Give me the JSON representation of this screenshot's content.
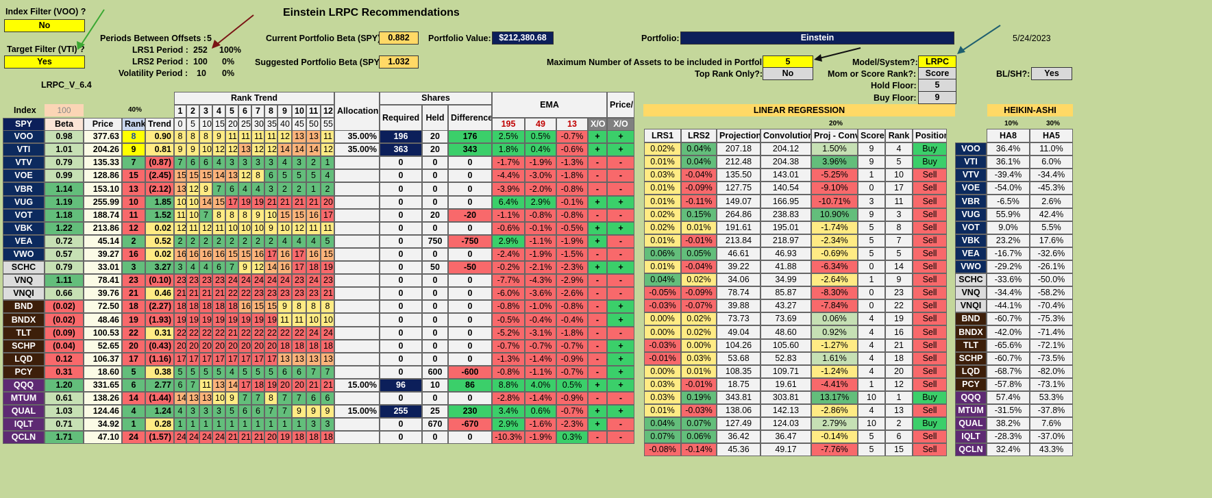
{
  "title": "Einstein LRPC Recommendations",
  "top": {
    "index_filter_label": "Index Filter (VOO) ?",
    "index_filter_value": "No",
    "target_filter_label": "Target Filter (VTI) ?",
    "target_filter_value": "Yes",
    "version": "LRPC_V_6.4",
    "periods_label": "Periods Between Offsets :",
    "periods_value": "5",
    "lrs1_label": "LRS1 Period :",
    "lrs1_value": "252",
    "lrs1_pct": "100%",
    "lrs2_label": "LRS2 Period :",
    "lrs2_value": "100",
    "lrs2_pct": "0%",
    "vol_label": "Volatility Period :",
    "vol_value": "10",
    "vol_pct": "0%",
    "cur_beta_label": "Current Portfolio Beta (SPY):",
    "cur_beta": "0.882",
    "sug_beta_label": "Suggested Portfolio Beta (SPY):",
    "sug_beta": "1.032",
    "pv_label": "Portfolio Value:",
    "pv": "$212,380.68",
    "portfolio_label": "Portfolio:",
    "portfolio": "Einstein",
    "date": "5/24/2023",
    "max_assets_label": "Maximum Number of Assets to be included in Portfolio:",
    "max_assets": "5",
    "top_rank_label": "Top Rank Only?:",
    "top_rank": "No",
    "model_label": "Model/System?:",
    "model": "LRPC",
    "mom_label": "Mom or Score Rank?:",
    "mom": "Score",
    "hold_label": "Hold Floor:",
    "hold": "5",
    "buy_label": "Buy Floor:",
    "buy": "9",
    "blsh_label": "BL/SH?:",
    "blsh": "Yes"
  },
  "left_headers": {
    "index": "Index",
    "index_val": "100",
    "pct40": "40%",
    "spy": "SPY",
    "beta": "Beta",
    "price": "Price",
    "rank": "Rank",
    "trend": "Trend"
  },
  "rank_trend": {
    "title": "Rank Trend",
    "nums": [
      "1",
      "2",
      "3",
      "4",
      "5",
      "6",
      "7",
      "8",
      "9",
      "10",
      "11",
      "12"
    ],
    "offsets": [
      "0",
      "5",
      "10",
      "15",
      "20",
      "25",
      "30",
      "35",
      "40",
      "45",
      "50",
      "55"
    ]
  },
  "mid_headers": {
    "alloc": "Allocations",
    "shares": "Shares",
    "required": "Required",
    "held": "Held",
    "diff": "Difference",
    "ema": "EMA",
    "ema1": "195",
    "ema2": "49",
    "ema3": "13",
    "xo": "X/O",
    "psma": "Price/ SMA",
    "xo2": "X/O"
  },
  "lr_headers": {
    "title": "LINEAR REGRESSION",
    "pct": "20%",
    "lrs1": "LRS1",
    "lrs2": "LRS2",
    "proj": "Projection",
    "conv": "Convolution",
    "pc": "Proj - Conv",
    "score": "Score",
    "rank": "Rank",
    "pos": "Position"
  },
  "ha_headers": {
    "title": "HEIKIN-ASHI",
    "p1": "10%",
    "p2": "30%",
    "ha8": "HA8",
    "ha5": "HA5"
  },
  "rows": [
    {
      "t": "VOO",
      "beta": "0.98",
      "price": "377.63",
      "rank": "8",
      "trend": "0.90",
      "rt": [
        "8",
        "8",
        "8",
        "9",
        "11",
        "11",
        "11",
        "11",
        "12",
        "13",
        "13",
        "11"
      ],
      "alloc": "35.00%",
      "req": "196",
      "held": "20",
      "diff": "176",
      "e1": "2.5%",
      "e2": "0.5%",
      "e3": "-0.7%",
      "xo": "+",
      "ps": "+",
      "l1": "0.02%",
      "l2": "0.04%",
      "proj": "207.18",
      "conv": "204.12",
      "pc": "1.50%",
      "score": "9",
      "rk": "4",
      "pos": "Buy",
      "ha8": "36.4%",
      "ha5": "11.0%"
    },
    {
      "t": "VTI",
      "beta": "1.01",
      "price": "204.26",
      "rank": "9",
      "trend": "0.81",
      "rt": [
        "9",
        "9",
        "10",
        "12",
        "12",
        "13",
        "12",
        "12",
        "14",
        "14",
        "14",
        "12"
      ],
      "alloc": "35.00%",
      "req": "363",
      "held": "20",
      "diff": "343",
      "e1": "1.8%",
      "e2": "0.4%",
      "e3": "-0.6%",
      "xo": "+",
      "ps": "+",
      "l1": "0.01%",
      "l2": "0.04%",
      "proj": "212.48",
      "conv": "204.38",
      "pc": "3.96%",
      "score": "9",
      "rk": "5",
      "pos": "Buy",
      "ha8": "36.1%",
      "ha5": "6.0%"
    },
    {
      "t": "VTV",
      "beta": "0.79",
      "price": "135.33",
      "rank": "7",
      "trend": "(0.87)",
      "rt": [
        "7",
        "6",
        "6",
        "4",
        "3",
        "3",
        "3",
        "3",
        "4",
        "3",
        "2",
        "1"
      ],
      "alloc": "",
      "req": "0",
      "held": "0",
      "diff": "0",
      "e1": "-1.7%",
      "e2": "-1.9%",
      "e3": "-1.3%",
      "xo": "-",
      "ps": "-",
      "l1": "0.03%",
      "l2": "-0.04%",
      "proj": "135.50",
      "conv": "143.01",
      "pc": "-5.25%",
      "score": "1",
      "rk": "10",
      "pos": "Sell",
      "ha8": "-39.4%",
      "ha5": "-34.4%"
    },
    {
      "t": "VOE",
      "beta": "0.99",
      "price": "128.86",
      "rank": "15",
      "trend": "(2.45)",
      "rt": [
        "15",
        "15",
        "15",
        "14",
        "13",
        "12",
        "8",
        "6",
        "5",
        "5",
        "5",
        "4"
      ],
      "alloc": "",
      "req": "0",
      "held": "0",
      "diff": "0",
      "e1": "-4.4%",
      "e2": "-3.0%",
      "e3": "-1.8%",
      "xo": "-",
      "ps": "-",
      "l1": "0.01%",
      "l2": "-0.09%",
      "proj": "127.75",
      "conv": "140.54",
      "pc": "-9.10%",
      "score": "0",
      "rk": "17",
      "pos": "Sell",
      "ha8": "-54.0%",
      "ha5": "-45.3%"
    },
    {
      "t": "VBR",
      "beta": "1.14",
      "price": "153.10",
      "rank": "13",
      "trend": "(2.12)",
      "rt": [
        "13",
        "12",
        "9",
        "7",
        "6",
        "4",
        "4",
        "3",
        "2",
        "2",
        "1",
        "2"
      ],
      "alloc": "",
      "req": "0",
      "held": "0",
      "diff": "0",
      "e1": "-3.9%",
      "e2": "-2.0%",
      "e3": "-0.8%",
      "xo": "-",
      "ps": "-",
      "l1": "0.01%",
      "l2": "-0.11%",
      "proj": "149.07",
      "conv": "166.95",
      "pc": "-10.71%",
      "score": "3",
      "rk": "11",
      "pos": "Sell",
      "ha8": "-6.5%",
      "ha5": "2.6%"
    },
    {
      "t": "VUG",
      "beta": "1.19",
      "price": "255.99",
      "rank": "10",
      "trend": "1.85",
      "rt": [
        "10",
        "10",
        "14",
        "15",
        "17",
        "19",
        "19",
        "21",
        "21",
        "21",
        "21",
        "20"
      ],
      "alloc": "",
      "req": "0",
      "held": "0",
      "diff": "0",
      "e1": "6.4%",
      "e2": "2.9%",
      "e3": "-0.1%",
      "xo": "+",
      "ps": "+",
      "l1": "0.02%",
      "l2": "0.15%",
      "proj": "264.86",
      "conv": "238.83",
      "pc": "10.90%",
      "score": "9",
      "rk": "3",
      "pos": "Sell",
      "ha8": "55.9%",
      "ha5": "42.4%"
    },
    {
      "t": "VOT",
      "beta": "1.18",
      "price": "188.74",
      "rank": "11",
      "trend": "1.52",
      "rt": [
        "11",
        "10",
        "7",
        "8",
        "8",
        "8",
        "9",
        "10",
        "15",
        "15",
        "16",
        "17"
      ],
      "alloc": "",
      "req": "0",
      "held": "20",
      "diff": "-20",
      "e1": "-1.1%",
      "e2": "-0.8%",
      "e3": "-0.8%",
      "xo": "-",
      "ps": "-",
      "l1": "0.02%",
      "l2": "0.01%",
      "proj": "191.61",
      "conv": "195.01",
      "pc": "-1.74%",
      "score": "5",
      "rk": "8",
      "pos": "Sell",
      "ha8": "9.0%",
      "ha5": "5.5%"
    },
    {
      "t": "VBK",
      "beta": "1.22",
      "price": "213.86",
      "rank": "12",
      "trend": "0.02",
      "rt": [
        "12",
        "11",
        "12",
        "11",
        "10",
        "10",
        "10",
        "9",
        "10",
        "12",
        "11",
        "11"
      ],
      "alloc": "",
      "req": "0",
      "held": "0",
      "diff": "0",
      "e1": "-0.6%",
      "e2": "-0.1%",
      "e3": "-0.5%",
      "xo": "+",
      "ps": "+",
      "l1": "0.01%",
      "l2": "-0.01%",
      "proj": "213.84",
      "conv": "218.97",
      "pc": "-2.34%",
      "score": "5",
      "rk": "7",
      "pos": "Sell",
      "ha8": "23.2%",
      "ha5": "17.6%"
    },
    {
      "t": "VEA",
      "beta": "0.72",
      "price": "45.14",
      "rank": "2",
      "trend": "0.52",
      "rt": [
        "2",
        "2",
        "2",
        "2",
        "2",
        "2",
        "2",
        "2",
        "4",
        "4",
        "4",
        "5"
      ],
      "alloc": "",
      "req": "0",
      "held": "750",
      "diff": "-750",
      "e1": "2.9%",
      "e2": "-1.1%",
      "e3": "-1.9%",
      "xo": "+",
      "ps": "-",
      "l1": "0.06%",
      "l2": "0.05%",
      "proj": "46.61",
      "conv": "46.93",
      "pc": "-0.69%",
      "score": "5",
      "rk": "5",
      "pos": "Sell",
      "ha8": "-16.7%",
      "ha5": "-32.6%"
    },
    {
      "t": "VWO",
      "beta": "0.57",
      "price": "39.27",
      "rank": "16",
      "trend": "0.02",
      "rt": [
        "16",
        "16",
        "16",
        "16",
        "15",
        "15",
        "16",
        "17",
        "16",
        "17",
        "16",
        "15"
      ],
      "alloc": "",
      "req": "0",
      "held": "0",
      "diff": "0",
      "e1": "-2.4%",
      "e2": "-1.9%",
      "e3": "-1.5%",
      "xo": "-",
      "ps": "-",
      "l1": "0.01%",
      "l2": "-0.04%",
      "proj": "39.22",
      "conv": "41.88",
      "pc": "-6.34%",
      "score": "0",
      "rk": "14",
      "pos": "Sell",
      "ha8": "-29.2%",
      "ha5": "-26.1%"
    },
    {
      "t": "SCHC",
      "beta": "0.79",
      "price": "33.01",
      "rank": "3",
      "trend": "3.27",
      "rt": [
        "3",
        "4",
        "4",
        "6",
        "7",
        "9",
        "12",
        "14",
        "16",
        "17",
        "18",
        "19"
      ],
      "alloc": "",
      "req": "0",
      "held": "50",
      "diff": "-50",
      "e1": "-0.2%",
      "e2": "-2.1%",
      "e3": "-2.3%",
      "xo": "+",
      "ps": "+",
      "l1": "0.04%",
      "l2": "0.02%",
      "proj": "34.06",
      "conv": "34.99",
      "pc": "-2.64%",
      "score": "1",
      "rk": "9",
      "pos": "Sell",
      "ha8": "-33.6%",
      "ha5": "-50.0%"
    },
    {
      "t": "VNQ",
      "beta": "1.11",
      "price": "78.41",
      "rank": "23",
      "trend": "(0.10)",
      "rt": [
        "23",
        "23",
        "23",
        "23",
        "24",
        "24",
        "24",
        "24",
        "24",
        "23",
        "24",
        "23"
      ],
      "alloc": "",
      "req": "0",
      "held": "0",
      "diff": "0",
      "e1": "-7.7%",
      "e2": "-4.3%",
      "e3": "-2.9%",
      "xo": "-",
      "ps": "-",
      "l1": "-0.05%",
      "l2": "-0.09%",
      "proj": "78.74",
      "conv": "85.87",
      "pc": "-8.30%",
      "score": "0",
      "rk": "23",
      "pos": "Sell",
      "ha8": "-34.4%",
      "ha5": "-58.2%"
    },
    {
      "t": "VNQI",
      "beta": "0.66",
      "price": "39.76",
      "rank": "21",
      "trend": "0.46",
      "rt": [
        "21",
        "21",
        "21",
        "21",
        "22",
        "22",
        "23",
        "23",
        "23",
        "23",
        "23",
        "21"
      ],
      "alloc": "",
      "req": "0",
      "held": "0",
      "diff": "0",
      "e1": "-6.0%",
      "e2": "-3.6%",
      "e3": "-2.6%",
      "xo": "-",
      "ps": "-",
      "l1": "-0.03%",
      "l2": "-0.07%",
      "proj": "39.88",
      "conv": "43.27",
      "pc": "-7.84%",
      "score": "0",
      "rk": "22",
      "pos": "Sell",
      "ha8": "-44.1%",
      "ha5": "-70.4%"
    },
    {
      "t": "BND",
      "beta": "(0.02)",
      "price": "72.50",
      "rank": "18",
      "trend": "(2.27)",
      "rt": [
        "18",
        "18",
        "18",
        "18",
        "18",
        "16",
        "15",
        "15",
        "9",
        "8",
        "8",
        "8"
      ],
      "alloc": "",
      "req": "0",
      "held": "0",
      "diff": "0",
      "e1": "-0.8%",
      "e2": "-1.0%",
      "e3": "-0.8%",
      "xo": "-",
      "ps": "+",
      "l1": "0.00%",
      "l2": "0.02%",
      "proj": "73.73",
      "conv": "73.69",
      "pc": "0.06%",
      "score": "4",
      "rk": "19",
      "pos": "Sell",
      "ha8": "-60.7%",
      "ha5": "-75.3%"
    },
    {
      "t": "BNDX",
      "beta": "(0.02)",
      "price": "48.46",
      "rank": "19",
      "trend": "(1.93)",
      "rt": [
        "19",
        "19",
        "19",
        "19",
        "19",
        "19",
        "19",
        "19",
        "11",
        "11",
        "10",
        "10"
      ],
      "alloc": "",
      "req": "0",
      "held": "0",
      "diff": "0",
      "e1": "-0.5%",
      "e2": "-0.4%",
      "e3": "-0.4%",
      "xo": "-",
      "ps": "+",
      "l1": "0.00%",
      "l2": "0.02%",
      "proj": "49.04",
      "conv": "48.60",
      "pc": "0.92%",
      "score": "4",
      "rk": "16",
      "pos": "Sell",
      "ha8": "-42.0%",
      "ha5": "-71.4%"
    },
    {
      "t": "TLT",
      "beta": "(0.09)",
      "price": "100.53",
      "rank": "22",
      "trend": "0.31",
      "rt": [
        "22",
        "22",
        "22",
        "22",
        "21",
        "22",
        "22",
        "22",
        "22",
        "22",
        "24",
        "24"
      ],
      "alloc": "",
      "req": "0",
      "held": "0",
      "diff": "0",
      "e1": "-5.2%",
      "e2": "-3.1%",
      "e3": "-1.8%",
      "xo": "-",
      "ps": "-",
      "l1": "-0.03%",
      "l2": "0.00%",
      "proj": "104.26",
      "conv": "105.60",
      "pc": "-1.27%",
      "score": "4",
      "rk": "21",
      "pos": "Sell",
      "ha8": "-65.6%",
      "ha5": "-72.1%"
    },
    {
      "t": "SCHP",
      "beta": "(0.04)",
      "price": "52.65",
      "rank": "20",
      "trend": "(0.43)",
      "rt": [
        "20",
        "20",
        "20",
        "20",
        "20",
        "20",
        "20",
        "20",
        "18",
        "18",
        "18",
        "18"
      ],
      "alloc": "",
      "req": "0",
      "held": "0",
      "diff": "0",
      "e1": "-0.7%",
      "e2": "-0.7%",
      "e3": "-0.7%",
      "xo": "-",
      "ps": "+",
      "l1": "-0.01%",
      "l2": "0.03%",
      "proj": "53.68",
      "conv": "52.83",
      "pc": "1.61%",
      "score": "4",
      "rk": "18",
      "pos": "Sell",
      "ha8": "-60.7%",
      "ha5": "-73.5%"
    },
    {
      "t": "LQD",
      "beta": "0.12",
      "price": "106.37",
      "rank": "17",
      "trend": "(1.16)",
      "rt": [
        "17",
        "17",
        "17",
        "17",
        "17",
        "17",
        "17",
        "17",
        "13",
        "13",
        "13",
        "13"
      ],
      "alloc": "",
      "req": "0",
      "held": "0",
      "diff": "0",
      "e1": "-1.3%",
      "e2": "-1.4%",
      "e3": "-0.9%",
      "xo": "-",
      "ps": "+",
      "l1": "0.00%",
      "l2": "0.01%",
      "proj": "108.35",
      "conv": "109.71",
      "pc": "-1.24%",
      "score": "4",
      "rk": "20",
      "pos": "Sell",
      "ha8": "-68.7%",
      "ha5": "-82.0%"
    },
    {
      "t": "PCY",
      "beta": "0.31",
      "price": "18.60",
      "rank": "5",
      "trend": "0.38",
      "rt": [
        "5",
        "5",
        "5",
        "5",
        "4",
        "5",
        "5",
        "5",
        "6",
        "6",
        "7",
        "7"
      ],
      "alloc": "",
      "req": "0",
      "held": "600",
      "diff": "-600",
      "e1": "-0.8%",
      "e2": "-1.1%",
      "e3": "-0.7%",
      "xo": "-",
      "ps": "+",
      "l1": "0.03%",
      "l2": "-0.01%",
      "proj": "18.75",
      "conv": "19.61",
      "pc": "-4.41%",
      "score": "1",
      "rk": "12",
      "pos": "Sell",
      "ha8": "-57.8%",
      "ha5": "-73.1%"
    },
    {
      "t": "QQQ",
      "beta": "1.20",
      "price": "331.65",
      "rank": "6",
      "trend": "2.77",
      "rt": [
        "6",
        "7",
        "11",
        "13",
        "14",
        "17",
        "18",
        "19",
        "20",
        "20",
        "21",
        "21"
      ],
      "alloc": "15.00%",
      "req": "96",
      "held": "10",
      "diff": "86",
      "e1": "8.8%",
      "e2": "4.0%",
      "e3": "0.5%",
      "xo": "+",
      "ps": "+",
      "l1": "0.03%",
      "l2": "0.19%",
      "proj": "343.81",
      "conv": "303.81",
      "pc": "13.17%",
      "score": "10",
      "rk": "1",
      "pos": "Buy",
      "ha8": "57.4%",
      "ha5": "53.3%"
    },
    {
      "t": "MTUM",
      "beta": "0.61",
      "price": "138.26",
      "rank": "14",
      "trend": "(1.44)",
      "rt": [
        "14",
        "13",
        "13",
        "10",
        "9",
        "7",
        "7",
        "8",
        "7",
        "7",
        "6",
        "6"
      ],
      "alloc": "",
      "req": "0",
      "held": "0",
      "diff": "0",
      "e1": "-2.8%",
      "e2": "-1.4%",
      "e3": "-0.9%",
      "xo": "-",
      "ps": "-",
      "l1": "0.01%",
      "l2": "-0.03%",
      "proj": "138.06",
      "conv": "142.13",
      "pc": "-2.86%",
      "score": "4",
      "rk": "13",
      "pos": "Sell",
      "ha8": "-31.5%",
      "ha5": "-37.8%"
    },
    {
      "t": "QUAL",
      "beta": "1.03",
      "price": "124.46",
      "rank": "4",
      "trend": "1.24",
      "rt": [
        "4",
        "3",
        "3",
        "3",
        "5",
        "6",
        "6",
        "7",
        "7",
        "9",
        "9",
        "9"
      ],
      "alloc": "15.00%",
      "req": "255",
      "held": "25",
      "diff": "230",
      "e1": "3.4%",
      "e2": "0.6%",
      "e3": "-0.7%",
      "xo": "+",
      "ps": "+",
      "l1": "0.04%",
      "l2": "0.07%",
      "proj": "127.49",
      "conv": "124.03",
      "pc": "2.79%",
      "score": "10",
      "rk": "2",
      "pos": "Buy",
      "ha8": "38.2%",
      "ha5": "7.6%"
    },
    {
      "t": "IQLT",
      "beta": "0.71",
      "price": "34.92",
      "rank": "1",
      "trend": "0.28",
      "rt": [
        "1",
        "1",
        "1",
        "1",
        "1",
        "1",
        "1",
        "1",
        "1",
        "1",
        "3",
        "3"
      ],
      "alloc": "",
      "req": "0",
      "held": "670",
      "diff": "-670",
      "e1": "2.9%",
      "e2": "-1.6%",
      "e3": "-2.3%",
      "xo": "+",
      "ps": "-",
      "l1": "0.07%",
      "l2": "0.06%",
      "proj": "36.42",
      "conv": "36.47",
      "pc": "-0.14%",
      "score": "5",
      "rk": "6",
      "pos": "Sell",
      "ha8": "-28.3%",
      "ha5": "-37.0%"
    },
    {
      "t": "QCLN",
      "beta": "1.71",
      "price": "47.10",
      "rank": "24",
      "trend": "(1.57)",
      "rt": [
        "24",
        "24",
        "24",
        "24",
        "21",
        "21",
        "21",
        "20",
        "19",
        "18",
        "18",
        "18"
      ],
      "alloc": "",
      "req": "0",
      "held": "0",
      "diff": "0",
      "e1": "-10.3%",
      "e2": "-1.9%",
      "e3": "0.3%",
      "xo": "-",
      "ps": "-",
      "l1": "-0.08%",
      "l2": "-0.14%",
      "proj": "45.36",
      "conv": "49.17",
      "pc": "-7.76%",
      "score": "5",
      "rk": "15",
      "pos": "Sell",
      "ha8": "32.4%",
      "ha5": "43.3%"
    }
  ],
  "row_colors": {
    "tk": [
      "n",
      "n",
      "n",
      "n",
      "n",
      "n",
      "n",
      "n",
      "n",
      "n",
      "l",
      "l",
      "l",
      "b",
      "b",
      "b",
      "b",
      "b",
      "b",
      "p",
      "p",
      "p",
      "p",
      "p"
    ]
  }
}
